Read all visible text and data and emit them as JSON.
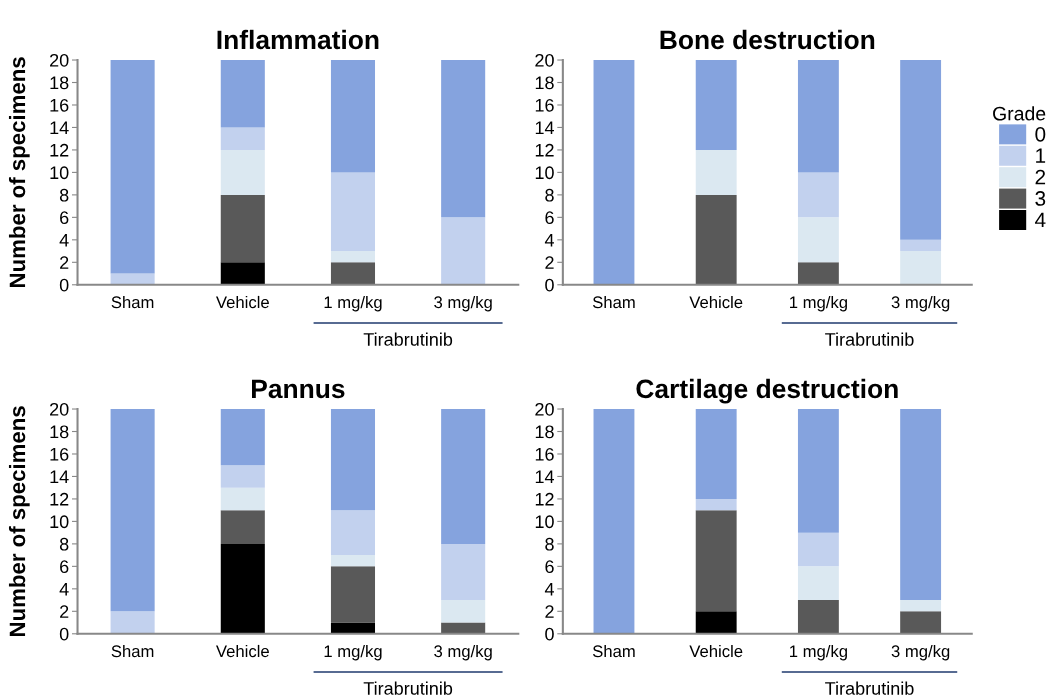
{
  "chart_data": [
    {
      "type": "bar",
      "title": "Inflammation",
      "ylabel": "Number of specimens",
      "categories": [
        "Sham",
        "Vehicle",
        "1 mg/kg",
        "3 mg/kg"
      ],
      "stacked": true,
      "ylim": [
        0,
        20
      ],
      "yticks": [
        0,
        2,
        4,
        6,
        8,
        10,
        12,
        14,
        16,
        18,
        20
      ],
      "grid": false,
      "legend": false,
      "annotations": [
        "Tirabrutinib"
      ],
      "series": [
        {
          "color": "#000000",
          "values": [
            0,
            2,
            0,
            0
          ]
        },
        {
          "color": "#595959",
          "values": [
            0,
            6,
            2,
            0
          ]
        },
        {
          "color": "#dbe8f1",
          "values": [
            0,
            4,
            1,
            0
          ]
        },
        {
          "color": "#c2d1ee",
          "values": [
            1,
            2,
            7,
            6
          ]
        },
        {
          "color": "#85a3de",
          "values": [
            19,
            6,
            10,
            14
          ]
        }
      ]
    },
    {
      "type": "bar",
      "title": "Bone destruction",
      "legend_title": "Grade",
      "categories": [
        "Sham",
        "Vehicle",
        "1 mg/kg",
        "3 mg/kg"
      ],
      "stacked": true,
      "ylim": [
        0,
        20
      ],
      "yticks": [
        0,
        2,
        4,
        6,
        8,
        10,
        12,
        14,
        16,
        18,
        20
      ],
      "grid": false,
      "legend": "right",
      "annotations": [
        "Tirabrutinib"
      ],
      "series": [
        {
          "name": "4",
          "color": "#000000",
          "values": [
            0,
            0,
            0,
            0
          ]
        },
        {
          "name": "3",
          "color": "#595959",
          "values": [
            0,
            8,
            2,
            0
          ]
        },
        {
          "name": "2",
          "color": "#dbe8f1",
          "values": [
            0,
            4,
            4,
            3
          ]
        },
        {
          "name": "1",
          "color": "#c2d1ee",
          "values": [
            0,
            0,
            4,
            1
          ]
        },
        {
          "name": "0",
          "color": "#85a3de",
          "values": [
            20,
            8,
            10,
            16
          ]
        }
      ]
    },
    {
      "type": "bar",
      "title": "Pannus",
      "ylabel": "Number of specimens",
      "categories": [
        "Sham",
        "Vehicle",
        "1 mg/kg",
        "3 mg/kg"
      ],
      "stacked": true,
      "ylim": [
        0,
        20
      ],
      "yticks": [
        0,
        2,
        4,
        6,
        8,
        10,
        12,
        14,
        16,
        18,
        20
      ],
      "grid": false,
      "legend": false,
      "annotations": [
        "Tirabrutinib"
      ],
      "series": [
        {
          "color": "#000000",
          "values": [
            0,
            8,
            1,
            0
          ]
        },
        {
          "color": "#595959",
          "values": [
            0,
            3,
            5,
            1
          ]
        },
        {
          "color": "#dbe8f1",
          "values": [
            0,
            2,
            1,
            2
          ]
        },
        {
          "color": "#c2d1ee",
          "values": [
            2,
            2,
            4,
            5
          ]
        },
        {
          "color": "#85a3de",
          "values": [
            18,
            5,
            9,
            12
          ]
        }
      ]
    },
    {
      "type": "bar",
      "title": "Cartilage destruction",
      "categories": [
        "Sham",
        "Vehicle",
        "1 mg/kg",
        "3 mg/kg"
      ],
      "stacked": true,
      "ylim": [
        0,
        20
      ],
      "yticks": [
        0,
        2,
        4,
        6,
        8,
        10,
        12,
        14,
        16,
        18,
        20
      ],
      "grid": false,
      "legend": false,
      "annotations": [
        "Tirabrutinib"
      ],
      "series": [
        {
          "color": "#000000",
          "values": [
            0,
            2,
            0,
            0
          ]
        },
        {
          "color": "#595959",
          "values": [
            0,
            9,
            3,
            2
          ]
        },
        {
          "color": "#dbe8f1",
          "values": [
            0,
            0,
            3,
            1
          ]
        },
        {
          "color": "#c2d1ee",
          "values": [
            0,
            1,
            3,
            0
          ]
        },
        {
          "color": "#85a3de",
          "values": [
            20,
            8,
            11,
            17
          ]
        }
      ]
    }
  ]
}
